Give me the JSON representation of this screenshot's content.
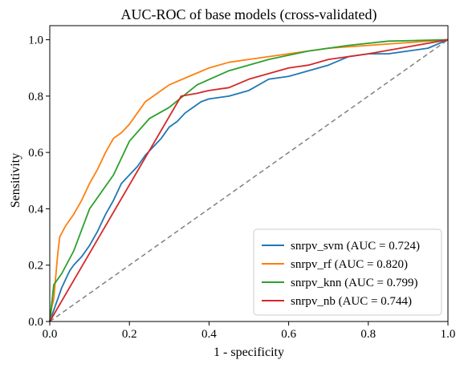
{
  "chart_data": {
    "type": "line",
    "title": "AUC-ROC of base models (cross-validated)",
    "xlabel": "1 - specificity",
    "ylabel": "Sensitivity",
    "xlim": [
      0.0,
      1.0
    ],
    "ylim": [
      0.0,
      1.05
    ],
    "xticks": [
      "0.0",
      "0.2",
      "0.4",
      "0.6",
      "0.8",
      "1.0"
    ],
    "yticks": [
      "0.0",
      "0.2",
      "0.4",
      "0.6",
      "0.8",
      "1.0"
    ],
    "grid": false,
    "legend_position": "lower right",
    "diagonal": {
      "style": "dashed",
      "color": "#808080",
      "points": [
        [
          0,
          0
        ],
        [
          1,
          1
        ]
      ]
    },
    "series": [
      {
        "name": "snrpv_svm (AUC = 0.724)",
        "color": "#1f77b4",
        "points": [
          [
            0,
            0
          ],
          [
            0.01,
            0.04
          ],
          [
            0.02,
            0.08
          ],
          [
            0.03,
            0.12
          ],
          [
            0.04,
            0.15
          ],
          [
            0.05,
            0.18
          ],
          [
            0.06,
            0.2
          ],
          [
            0.08,
            0.23
          ],
          [
            0.1,
            0.27
          ],
          [
            0.12,
            0.32
          ],
          [
            0.14,
            0.38
          ],
          [
            0.16,
            0.43
          ],
          [
            0.18,
            0.49
          ],
          [
            0.2,
            0.52
          ],
          [
            0.22,
            0.55
          ],
          [
            0.24,
            0.59
          ],
          [
            0.26,
            0.62
          ],
          [
            0.28,
            0.65
          ],
          [
            0.3,
            0.69
          ],
          [
            0.32,
            0.71
          ],
          [
            0.34,
            0.74
          ],
          [
            0.36,
            0.76
          ],
          [
            0.38,
            0.78
          ],
          [
            0.4,
            0.79
          ],
          [
            0.45,
            0.8
          ],
          [
            0.5,
            0.82
          ],
          [
            0.55,
            0.86
          ],
          [
            0.6,
            0.87
          ],
          [
            0.65,
            0.89
          ],
          [
            0.7,
            0.91
          ],
          [
            0.75,
            0.94
          ],
          [
            0.8,
            0.95
          ],
          [
            0.85,
            0.95
          ],
          [
            0.9,
            0.96
          ],
          [
            0.95,
            0.97
          ],
          [
            1.0,
            1.0
          ]
        ]
      },
      {
        "name": "snrpv_rf (AUC = 0.820)",
        "color": "#ff7f0e",
        "points": [
          [
            0,
            0
          ],
          [
            0.005,
            0.05
          ],
          [
            0.01,
            0.08
          ],
          [
            0.02,
            0.24
          ],
          [
            0.025,
            0.3
          ],
          [
            0.04,
            0.34
          ],
          [
            0.06,
            0.38
          ],
          [
            0.08,
            0.43
          ],
          [
            0.1,
            0.49
          ],
          [
            0.12,
            0.54
          ],
          [
            0.14,
            0.6
          ],
          [
            0.16,
            0.65
          ],
          [
            0.18,
            0.67
          ],
          [
            0.2,
            0.7
          ],
          [
            0.22,
            0.74
          ],
          [
            0.24,
            0.78
          ],
          [
            0.26,
            0.8
          ],
          [
            0.28,
            0.82
          ],
          [
            0.3,
            0.84
          ],
          [
            0.35,
            0.87
          ],
          [
            0.4,
            0.9
          ],
          [
            0.45,
            0.92
          ],
          [
            0.5,
            0.93
          ],
          [
            0.55,
            0.94
          ],
          [
            0.6,
            0.95
          ],
          [
            0.7,
            0.97
          ],
          [
            0.8,
            0.98
          ],
          [
            0.9,
            0.99
          ],
          [
            1.0,
            1.0
          ]
        ]
      },
      {
        "name": "snrpv_knn (AUC = 0.799)",
        "color": "#2ca02c",
        "points": [
          [
            0,
            0
          ],
          [
            0.01,
            0.13
          ],
          [
            0.03,
            0.17
          ],
          [
            0.06,
            0.25
          ],
          [
            0.1,
            0.4
          ],
          [
            0.16,
            0.52
          ],
          [
            0.2,
            0.64
          ],
          [
            0.25,
            0.72
          ],
          [
            0.3,
            0.76
          ],
          [
            0.37,
            0.84
          ],
          [
            0.45,
            0.89
          ],
          [
            0.55,
            0.93
          ],
          [
            0.65,
            0.96
          ],
          [
            0.75,
            0.98
          ],
          [
            0.85,
            0.995
          ],
          [
            1.0,
            1.0
          ]
        ]
      },
      {
        "name": "snrpv_nb (AUC = 0.744)",
        "color": "#d62728",
        "points": [
          [
            0,
            0
          ],
          [
            0.33,
            0.8
          ],
          [
            0.37,
            0.81
          ],
          [
            0.4,
            0.82
          ],
          [
            0.45,
            0.83
          ],
          [
            0.5,
            0.86
          ],
          [
            0.55,
            0.88
          ],
          [
            0.6,
            0.9
          ],
          [
            0.65,
            0.91
          ],
          [
            0.7,
            0.93
          ],
          [
            0.8,
            0.95
          ],
          [
            0.9,
            0.975
          ],
          [
            1.0,
            1.0
          ]
        ]
      }
    ]
  }
}
